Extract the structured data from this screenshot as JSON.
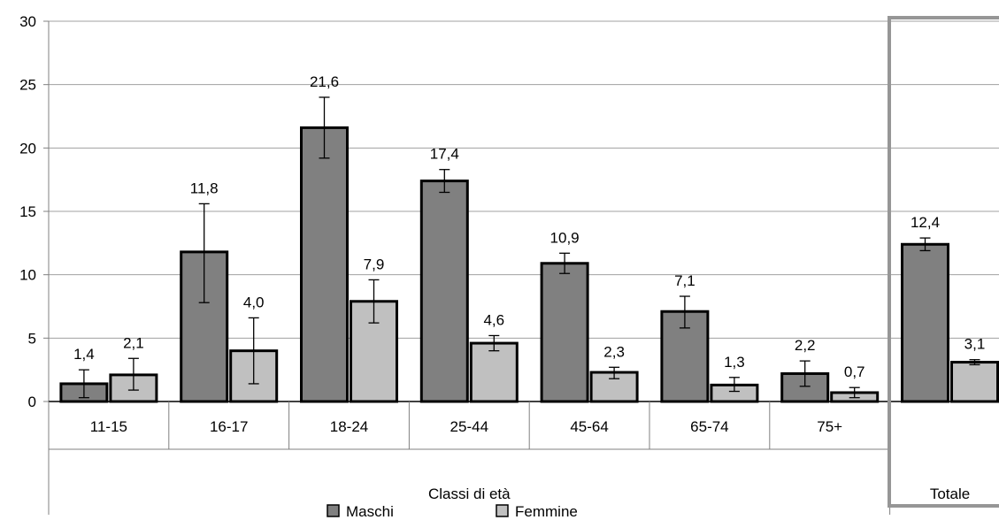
{
  "chart_data": {
    "type": "bar",
    "title": "",
    "ylabel": "",
    "xlabel": "Classi di età",
    "ylim": [
      0,
      30
    ],
    "yticks": [
      "0",
      "5",
      "10",
      "15",
      "20",
      "25",
      "30"
    ],
    "grid": true,
    "legend_position": "bottom",
    "categories": [
      "11-15",
      "16-17",
      "18-24",
      "25-44",
      "45-64",
      "65-74",
      "75+",
      "Totale"
    ],
    "group_label": "Classi di età",
    "total_label": "Totale",
    "series": [
      {
        "name": "Maschi",
        "color": "#808080",
        "values": [
          1.4,
          11.8,
          21.6,
          17.4,
          10.9,
          7.1,
          2.2,
          12.4
        ],
        "labels": [
          "1,4",
          "11,8",
          "21,6",
          "17,4",
          "10,9",
          "7,1",
          "2,2",
          "12,4"
        ],
        "error_low": [
          0.3,
          7.8,
          19.2,
          16.5,
          10.1,
          5.8,
          1.2,
          11.9
        ],
        "error_high": [
          2.5,
          15.6,
          24.0,
          18.3,
          11.7,
          8.3,
          3.2,
          12.9
        ]
      },
      {
        "name": "Femmine",
        "color": "#c0c0c0",
        "values": [
          2.1,
          4.0,
          7.9,
          4.6,
          2.3,
          1.3,
          0.7,
          3.1
        ],
        "labels": [
          "2,1",
          "4,0",
          "7,9",
          "4,6",
          "2,3",
          "1,3",
          "0,7",
          "3,1"
        ],
        "error_low": [
          0.9,
          1.4,
          6.2,
          4.0,
          1.8,
          0.8,
          0.3,
          2.9
        ],
        "error_high": [
          3.4,
          6.6,
          9.6,
          5.2,
          2.7,
          1.9,
          1.1,
          3.3
        ]
      }
    ]
  }
}
